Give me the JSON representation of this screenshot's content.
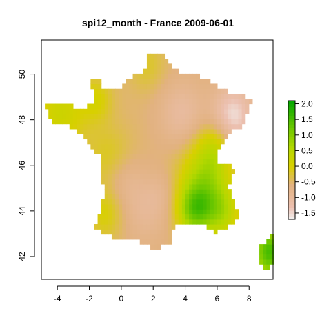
{
  "chart_data": {
    "type": "heatmap",
    "title": "spi12_month - France 2009-06-01",
    "xlabel": "",
    "ylabel": "",
    "xlim": [
      -5,
      9.5
    ],
    "ylim": [
      41,
      51.5
    ],
    "x_ticks": [
      -4,
      -2,
      0,
      2,
      4,
      6,
      8
    ],
    "y_ticks": [
      42,
      44,
      46,
      48,
      50
    ],
    "legend": {
      "position": "right",
      "zlim": [
        -1.7,
        2.1
      ],
      "ticks": [
        "2.0",
        "1.5",
        "1.0",
        "0.5",
        "0.0",
        "-0.5",
        "-1.0",
        "-1.5"
      ],
      "tick_values": [
        2.0,
        1.5,
        1.0,
        0.5,
        0.0,
        -0.5,
        -1.0,
        -1.5
      ],
      "color_stops": [
        {
          "value": -1.7,
          "color": "#f2f2f2"
        },
        {
          "value": -1.3,
          "color": "#ecc0b0"
        },
        {
          "value": -0.6,
          "color": "#e2b280"
        },
        {
          "value": 0.0,
          "color": "#d8d000"
        },
        {
          "value": 0.6,
          "color": "#b4d800"
        },
        {
          "value": 1.2,
          "color": "#70c800"
        },
        {
          "value": 2.1,
          "color": "#00a600"
        }
      ]
    },
    "regions": [
      {
        "name": "north",
        "approx_value": -0.5
      },
      {
        "name": "north-east",
        "approx_value": -1.3
      },
      {
        "name": "central",
        "approx_value": -0.8
      },
      {
        "name": "brittany",
        "approx_value": 0.2
      },
      {
        "name": "west-coast",
        "approx_value": 0.4
      },
      {
        "name": "south-west",
        "approx_value": -0.6
      },
      {
        "name": "rhone-alps-south",
        "approx_value": 1.3
      },
      {
        "name": "massif-central-south-east",
        "approx_value": 2.0
      },
      {
        "name": "corsica",
        "approx_value": 1.6
      }
    ]
  }
}
